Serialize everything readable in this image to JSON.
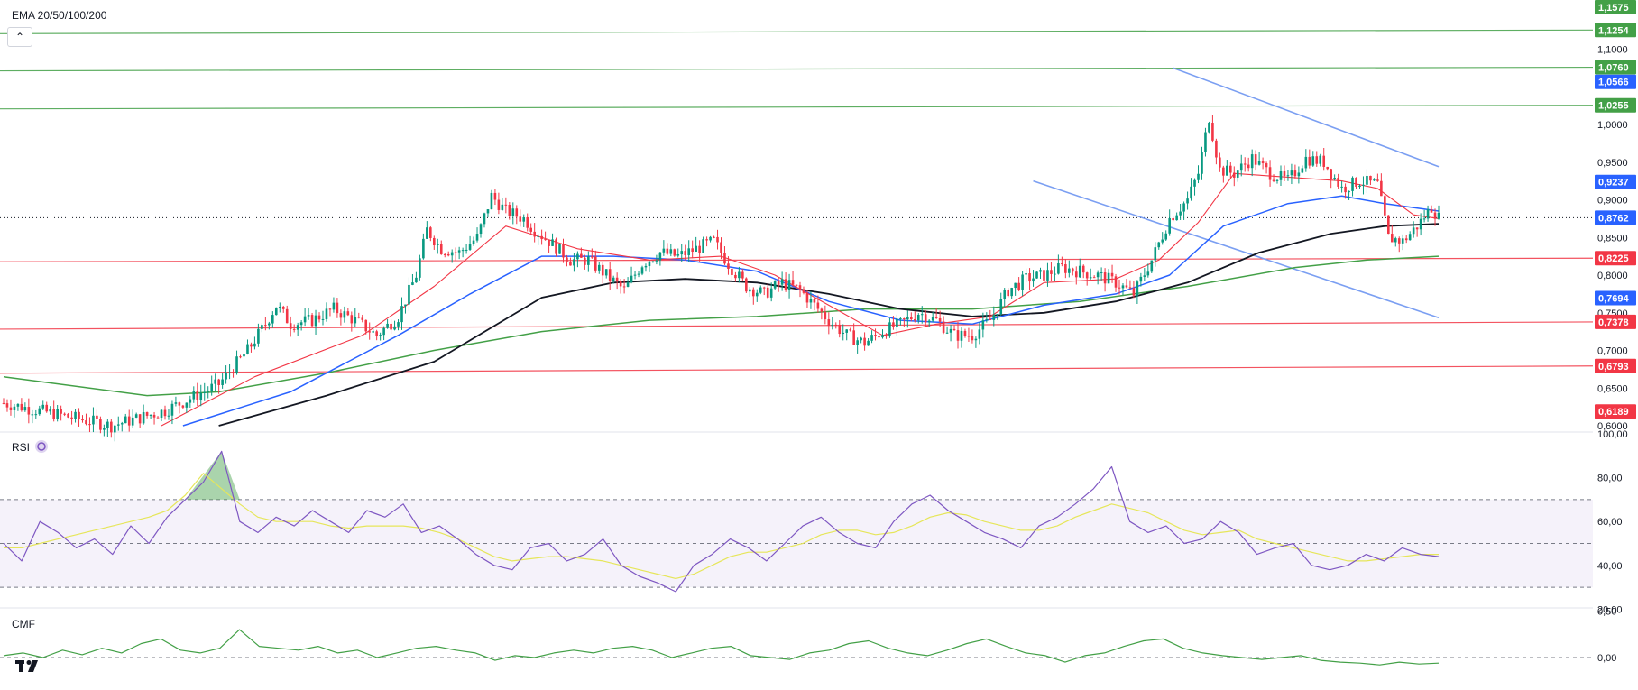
{
  "price_pane": {
    "indicator_label": "EMA 20/50/100/200",
    "collapse_icon": "chevron-up-icon",
    "axis_ticks": [
      "1,1000",
      "1,0000",
      "0,9500",
      "0,9000",
      "0,8500",
      "0,8000",
      "0,7500",
      "0,7000",
      "0,6500",
      "0,6000"
    ],
    "price_badges": [
      {
        "text": "1,1575",
        "value": 1.1575,
        "color": "#43a047"
      },
      {
        "text": "1,1254",
        "value": 1.1254,
        "color": "#43a047"
      },
      {
        "text": "1,0760",
        "value": 1.076,
        "color": "#43a047"
      },
      {
        "text": "1,0566",
        "value": 1.0566,
        "color": "#2962ff"
      },
      {
        "text": "1,0255",
        "value": 1.0255,
        "color": "#43a047"
      },
      {
        "text": "0,9237",
        "value": 0.9237,
        "color": "#2962ff"
      },
      {
        "text": "0,8762",
        "value": 0.8762,
        "color": "#2962ff"
      },
      {
        "text": "0,8225",
        "value": 0.8225,
        "color": "#f23645"
      },
      {
        "text": "0,7694",
        "value": 0.7694,
        "color": "#2962ff"
      },
      {
        "text": "0,7378",
        "value": 0.7378,
        "color": "#f23645"
      },
      {
        "text": "0,6793",
        "value": 0.6793,
        "color": "#f23645"
      },
      {
        "text": "0,6189",
        "value": 0.6189,
        "color": "#f23645"
      }
    ]
  },
  "rsi_pane": {
    "label": "RSI",
    "settings_icon": "refresh-icon",
    "axis_ticks": [
      "100,00",
      "80,00",
      "60,00",
      "40,00",
      "20,00"
    ]
  },
  "cmf_pane": {
    "label": "CMF",
    "axis_ticks": [
      "0,50",
      "0,00"
    ]
  },
  "logo_icon": "tradingview-logo-icon",
  "colors": {
    "up": "#089981",
    "down": "#f23645",
    "ema20": "#f23645",
    "ema50": "#2962ff",
    "ema100": "#131722",
    "ema200": "#43a047",
    "resistance": "#43a047",
    "support": "#f23645",
    "channel": "#7b9ff2",
    "rsi": "#7e57c2",
    "rsi_ma": "#e6e65a",
    "cmf": "#43a047"
  },
  "chart_data": {
    "type": "candlestick",
    "ylim": [
      0.6,
      1.16
    ],
    "grid": false,
    "horizontal_levels": [
      {
        "value": 1.1254,
        "role": "resistance"
      },
      {
        "value": 1.076,
        "role": "resistance"
      },
      {
        "value": 1.0255,
        "role": "resistance"
      },
      {
        "value": 0.8225,
        "role": "support"
      },
      {
        "value": 0.7378,
        "role": "support"
      },
      {
        "value": 0.6793,
        "role": "support"
      }
    ],
    "current_price": 0.8762,
    "price_path": [
      [
        0,
        0.63
      ],
      [
        15,
        0.615
      ],
      [
        30,
        0.6
      ],
      [
        45,
        0.62
      ],
      [
        60,
        0.655
      ],
      [
        68,
        0.7
      ],
      [
        73,
        0.735
      ],
      [
        76,
        0.76
      ],
      [
        80,
        0.735
      ],
      [
        86,
        0.74
      ],
      [
        92,
        0.755
      ],
      [
        98,
        0.74
      ],
      [
        104,
        0.72
      ],
      [
        110,
        0.745
      ],
      [
        115,
        0.8
      ],
      [
        118,
        0.86
      ],
      [
        122,
        0.835
      ],
      [
        127,
        0.83
      ],
      [
        132,
        0.85
      ],
      [
        136,
        0.905
      ],
      [
        140,
        0.885
      ],
      [
        145,
        0.875
      ],
      [
        148,
        0.86
      ],
      [
        152,
        0.845
      ],
      [
        158,
        0.82
      ],
      [
        163,
        0.82
      ],
      [
        168,
        0.8
      ],
      [
        173,
        0.78
      ],
      [
        178,
        0.815
      ],
      [
        183,
        0.83
      ],
      [
        188,
        0.825
      ],
      [
        193,
        0.835
      ],
      [
        198,
        0.845
      ],
      [
        202,
        0.815
      ],
      [
        207,
        0.785
      ],
      [
        212,
        0.775
      ],
      [
        217,
        0.79
      ],
      [
        222,
        0.78
      ],
      [
        226,
        0.76
      ],
      [
        230,
        0.74
      ],
      [
        235,
        0.72
      ],
      [
        240,
        0.71
      ],
      [
        245,
        0.725
      ],
      [
        250,
        0.735
      ],
      [
        255,
        0.75
      ],
      [
        260,
        0.74
      ],
      [
        265,
        0.72
      ],
      [
        270,
        0.72
      ],
      [
        275,
        0.74
      ],
      [
        280,
        0.78
      ],
      [
        285,
        0.795
      ],
      [
        290,
        0.8
      ],
      [
        295,
        0.81
      ],
      [
        300,
        0.805
      ],
      [
        305,
        0.8
      ],
      [
        310,
        0.79
      ],
      [
        315,
        0.775
      ],
      [
        320,
        0.82
      ],
      [
        325,
        0.875
      ],
      [
        330,
        0.9
      ],
      [
        333,
        0.935
      ],
      [
        336,
        1.01
      ],
      [
        339,
        0.94
      ],
      [
        343,
        0.935
      ],
      [
        348,
        0.955
      ],
      [
        353,
        0.935
      ],
      [
        358,
        0.925
      ],
      [
        363,
        0.955
      ],
      [
        368,
        0.95
      ],
      [
        373,
        0.915
      ],
      [
        378,
        0.925
      ],
      [
        383,
        0.92
      ],
      [
        386,
        0.85
      ],
      [
        390,
        0.845
      ],
      [
        394,
        0.865
      ],
      [
        398,
        0.89
      ],
      [
        400,
        0.8762
      ]
    ],
    "ema20_path": [
      [
        44,
        0.6
      ],
      [
        70,
        0.665
      ],
      [
        100,
        0.72
      ],
      [
        120,
        0.785
      ],
      [
        140,
        0.865
      ],
      [
        160,
        0.835
      ],
      [
        180,
        0.82
      ],
      [
        200,
        0.825
      ],
      [
        215,
        0.8
      ],
      [
        230,
        0.76
      ],
      [
        245,
        0.72
      ],
      [
        260,
        0.735
      ],
      [
        275,
        0.745
      ],
      [
        290,
        0.79
      ],
      [
        310,
        0.795
      ],
      [
        322,
        0.82
      ],
      [
        333,
        0.87
      ],
      [
        343,
        0.935
      ],
      [
        358,
        0.93
      ],
      [
        373,
        0.925
      ],
      [
        383,
        0.915
      ],
      [
        393,
        0.88
      ],
      [
        400,
        0.875
      ]
    ],
    "ema50_path": [
      [
        50,
        0.6
      ],
      [
        80,
        0.645
      ],
      [
        110,
        0.72
      ],
      [
        130,
        0.775
      ],
      [
        150,
        0.825
      ],
      [
        170,
        0.825
      ],
      [
        190,
        0.82
      ],
      [
        210,
        0.805
      ],
      [
        230,
        0.765
      ],
      [
        250,
        0.74
      ],
      [
        270,
        0.735
      ],
      [
        290,
        0.76
      ],
      [
        310,
        0.775
      ],
      [
        325,
        0.8
      ],
      [
        340,
        0.865
      ],
      [
        358,
        0.895
      ],
      [
        373,
        0.905
      ],
      [
        385,
        0.895
      ],
      [
        400,
        0.885
      ]
    ],
    "ema100_path": [
      [
        60,
        0.6
      ],
      [
        90,
        0.64
      ],
      [
        120,
        0.685
      ],
      [
        150,
        0.77
      ],
      [
        170,
        0.79
      ],
      [
        190,
        0.795
      ],
      [
        210,
        0.79
      ],
      [
        230,
        0.775
      ],
      [
        250,
        0.755
      ],
      [
        270,
        0.745
      ],
      [
        290,
        0.75
      ],
      [
        310,
        0.765
      ],
      [
        330,
        0.79
      ],
      [
        350,
        0.83
      ],
      [
        370,
        0.855
      ],
      [
        385,
        0.865
      ],
      [
        400,
        0.868
      ]
    ],
    "ema200_path": [
      [
        0,
        0.665
      ],
      [
        40,
        0.64
      ],
      [
        60,
        0.645
      ],
      [
        90,
        0.67
      ],
      [
        120,
        0.7
      ],
      [
        150,
        0.725
      ],
      [
        180,
        0.74
      ],
      [
        210,
        0.745
      ],
      [
        240,
        0.755
      ],
      [
        270,
        0.755
      ],
      [
        300,
        0.765
      ],
      [
        330,
        0.785
      ],
      [
        360,
        0.81
      ],
      [
        380,
        0.82
      ],
      [
        400,
        0.825
      ]
    ],
    "channel_lines": [
      [
        [
          326,
          1.075
        ],
        [
          400,
          0.92
        ]
      ],
      [
        [
          287,
          0.925
        ],
        [
          400,
          0.765
        ]
      ]
    ],
    "rsi": {
      "ylim": [
        20,
        100
      ],
      "bands": [
        70,
        50,
        30
      ],
      "values": [
        50,
        42,
        60,
        55,
        48,
        52,
        45,
        58,
        50,
        62,
        70,
        78,
        92,
        60,
        55,
        62,
        58,
        65,
        60,
        55,
        65,
        62,
        68,
        55,
        58,
        52,
        45,
        40,
        38,
        48,
        50,
        42,
        45,
        52,
        40,
        35,
        32,
        28,
        40,
        45,
        52,
        48,
        42,
        50,
        58,
        62,
        55,
        50,
        48,
        60,
        68,
        72,
        65,
        60,
        55,
        52,
        48,
        58,
        62,
        68,
        75,
        85,
        60,
        55,
        58,
        50,
        52,
        60,
        55,
        45,
        48,
        50,
        40,
        38,
        40,
        45,
        42,
        48,
        45,
        44
      ],
      "ma": [
        48,
        48,
        50,
        52,
        54,
        56,
        58,
        60,
        62,
        65,
        72,
        82,
        75,
        68,
        62,
        60,
        60,
        60,
        58,
        57,
        58,
        58,
        58,
        57,
        55,
        52,
        48,
        44,
        42,
        43,
        44,
        44,
        43,
        42,
        40,
        38,
        36,
        34,
        36,
        40,
        44,
        46,
        46,
        48,
        50,
        54,
        56,
        56,
        54,
        55,
        58,
        62,
        64,
        63,
        60,
        58,
        56,
        56,
        58,
        62,
        65,
        68,
        66,
        64,
        60,
        56,
        54,
        55,
        56,
        52,
        50,
        48,
        46,
        44,
        42,
        42,
        43,
        44,
        45,
        45
      ]
    },
    "cmf": {
      "ylim": [
        -0.1,
        0.5
      ],
      "values": [
        0.02,
        0.05,
        0.0,
        0.08,
        0.03,
        0.1,
        0.05,
        0.15,
        0.2,
        0.08,
        0.05,
        0.1,
        0.3,
        0.12,
        0.1,
        0.08,
        0.12,
        0.05,
        0.08,
        0.0,
        0.05,
        0.1,
        0.12,
        0.08,
        0.05,
        -0.03,
        0.02,
        0.0,
        0.05,
        0.08,
        0.05,
        0.1,
        0.12,
        0.08,
        0.0,
        0.05,
        0.1,
        0.12,
        0.02,
        0.0,
        -0.02,
        0.05,
        0.08,
        0.15,
        0.18,
        0.1,
        0.05,
        0.02,
        0.08,
        0.15,
        0.2,
        0.12,
        0.05,
        0.02,
        -0.05,
        0.02,
        0.05,
        0.12,
        0.18,
        0.2,
        0.1,
        0.05,
        0.02,
        0.0,
        -0.02,
        0.0,
        0.02,
        -0.03,
        -0.05,
        -0.06,
        -0.08,
        -0.05,
        -0.07,
        -0.06
      ]
    }
  }
}
